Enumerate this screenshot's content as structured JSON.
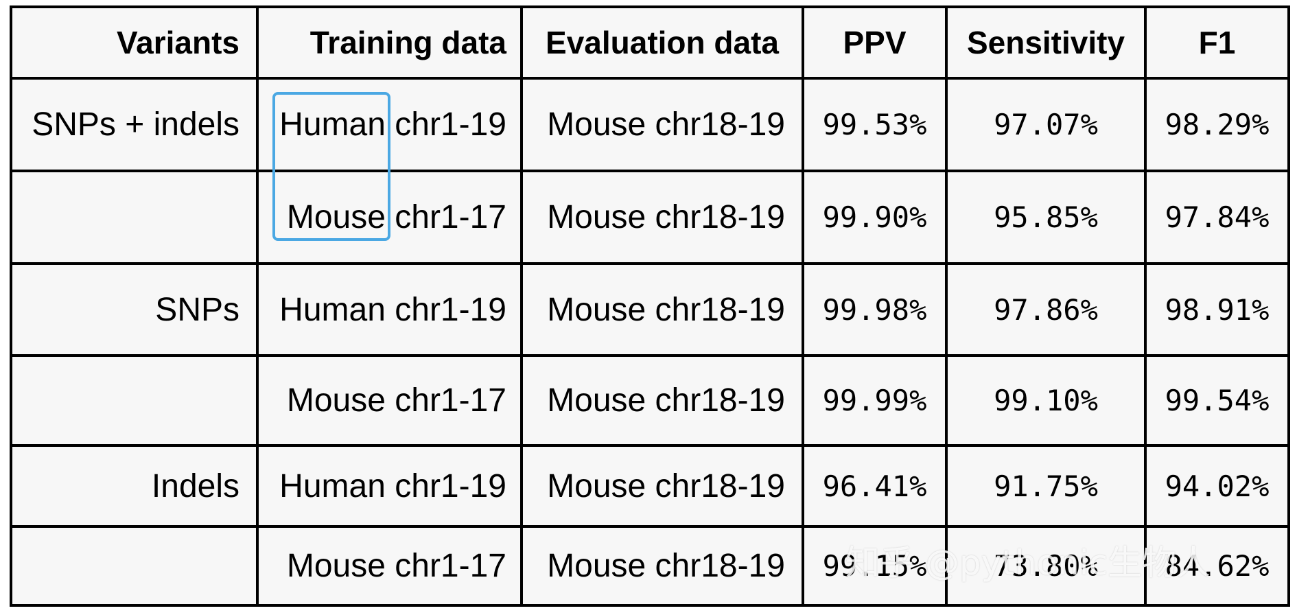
{
  "table": {
    "headers": [
      "Variants",
      "Training data",
      "Evaluation data",
      "PPV",
      "Sensitivity",
      "F1"
    ],
    "rows": [
      {
        "variants": "SNPs + indels",
        "training": "Human chr1-19",
        "evaluation": "Mouse chr18-19",
        "ppv": "99.53%",
        "sensitivity": "97.07%",
        "f1": "98.29%"
      },
      {
        "variants": "",
        "training": "Mouse chr1-17",
        "evaluation": "Mouse chr18-19",
        "ppv": "99.90%",
        "sensitivity": "95.85%",
        "f1": "97.84%"
      },
      {
        "variants": "SNPs",
        "training": "Human chr1-19",
        "evaluation": "Mouse chr18-19",
        "ppv": "99.98%",
        "sensitivity": "97.86%",
        "f1": "98.91%"
      },
      {
        "variants": "",
        "training": "Mouse chr1-17",
        "evaluation": "Mouse chr18-19",
        "ppv": "99.99%",
        "sensitivity": "99.10%",
        "f1": "99.54%"
      },
      {
        "variants": "Indels",
        "training": "Human chr1-19",
        "evaluation": "Mouse chr18-19",
        "ppv": "96.41%",
        "sensitivity": "91.75%",
        "f1": "94.02%"
      },
      {
        "variants": "",
        "training": "Mouse chr1-17",
        "evaluation": "Mouse chr18-19",
        "ppv": "99.15%",
        "sensitivity": "73.80%",
        "f1": "84.62%"
      }
    ]
  },
  "watermark": "知乎 @pythonic生物人",
  "colors": {
    "table_background": "#f7f7f7",
    "grid_lines": "#000000",
    "highlight_box": "#4ba8e3"
  }
}
